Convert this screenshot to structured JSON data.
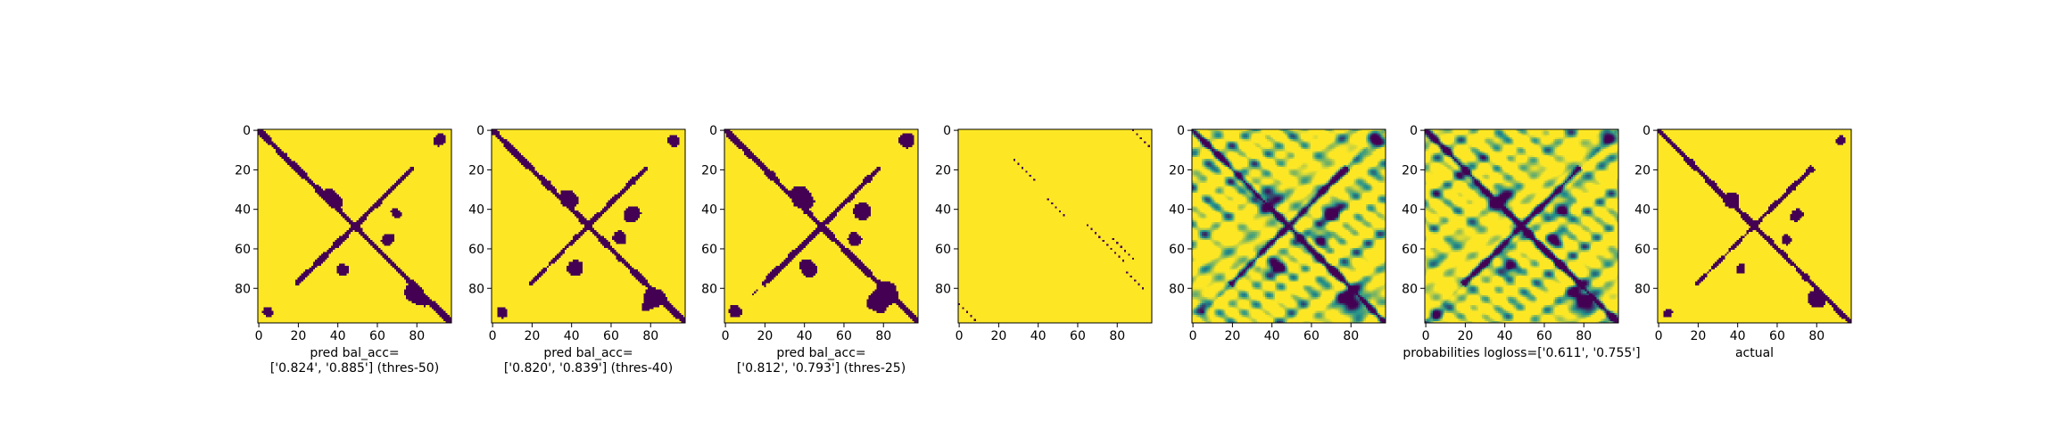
{
  "colors": {
    "low": "#440154",
    "mid": "#21918c",
    "high": "#fde725",
    "axis": "#000000",
    "background": "#ffffff"
  },
  "chart_data": [
    {
      "type": "heatmap",
      "kind": "binary",
      "xlabel": "pred bal_acc=\n['0.824', '0.885'] (thres-50)",
      "x_ticks": [
        0,
        20,
        40,
        60,
        80
      ],
      "y_ticks": [
        0,
        20,
        40,
        60,
        80
      ],
      "xlim": [
        0,
        97
      ],
      "ylim": [
        97,
        0
      ],
      "matrix_size": 98
    },
    {
      "type": "heatmap",
      "kind": "binary",
      "xlabel": "pred bal_acc=\n['0.820', '0.839'] (thres-40)",
      "x_ticks": [
        0,
        20,
        40,
        60,
        80
      ],
      "y_ticks": [
        0,
        20,
        40,
        60,
        80
      ],
      "xlim": [
        0,
        97
      ],
      "ylim": [
        97,
        0
      ],
      "matrix_size": 98
    },
    {
      "type": "heatmap",
      "kind": "binary",
      "xlabel": "pred bal_acc=\n['0.812', '0.793'] (thres-25)",
      "x_ticks": [
        0,
        20,
        40,
        60,
        80
      ],
      "y_ticks": [
        0,
        20,
        40,
        60,
        80
      ],
      "xlim": [
        0,
        97
      ],
      "ylim": [
        97,
        0
      ],
      "matrix_size": 98
    },
    {
      "type": "heatmap",
      "kind": "sparse",
      "xlabel": "",
      "x_ticks": [
        0,
        20,
        40,
        60,
        80
      ],
      "y_ticks": [
        0,
        20,
        40,
        60,
        80
      ],
      "xlim": [
        0,
        97
      ],
      "ylim": [
        97,
        0
      ],
      "matrix_size": 98
    },
    {
      "type": "heatmap",
      "kind": "continuous",
      "xlabel": "",
      "x_ticks": [
        0,
        20,
        40,
        60,
        80
      ],
      "y_ticks": [
        0,
        20,
        40,
        60,
        80
      ],
      "xlim": [
        0,
        97
      ],
      "ylim": [
        97,
        0
      ],
      "matrix_size": 98
    },
    {
      "type": "heatmap",
      "kind": "continuous",
      "xlabel": "probabilities logloss=['0.611', '0.755']",
      "x_ticks": [
        0,
        20,
        40,
        60,
        80
      ],
      "y_ticks": [
        0,
        20,
        40,
        60,
        80
      ],
      "xlim": [
        0,
        97
      ],
      "ylim": [
        97,
        0
      ],
      "matrix_size": 98
    },
    {
      "type": "heatmap",
      "kind": "binary",
      "xlabel": "actual",
      "x_ticks": [
        0,
        20,
        40,
        60,
        80
      ],
      "y_ticks": [
        0,
        20,
        40,
        60,
        80
      ],
      "xlim": [
        0,
        97
      ],
      "ylim": [
        97,
        0
      ],
      "matrix_size": 98
    }
  ]
}
